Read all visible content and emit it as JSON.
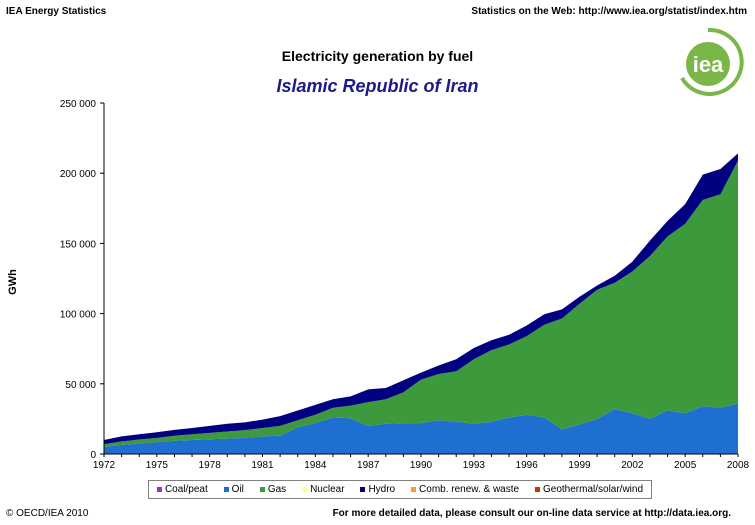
{
  "header": {
    "left": "IEA Energy Statistics",
    "right": "Statistics on the Web: http://www.iea.org/statist/index.htm"
  },
  "logo": {
    "text": "iea"
  },
  "footer": {
    "left": "© OECD/IEA 2010",
    "right": "For more detailed data, please consult our on-line data service at http://data.iea.org."
  },
  "colors": {
    "coal": "#9933cc",
    "oil": "#1f6fd1",
    "gas": "#3c9a3c",
    "nuclear": "#ffff99",
    "hydro": "#000080",
    "renewables": "#ff9933",
    "geothermal": "#cc3300",
    "logo_green": "#7ab648"
  },
  "chart_data": {
    "type": "area",
    "stacked": true,
    "title": "Electricity generation by fuel",
    "subtitle": "Islamic Republic of Iran",
    "xlabel": "",
    "ylabel": "GWh",
    "ylim": [
      0,
      250000
    ],
    "yticks": [
      0,
      50000,
      100000,
      150000,
      200000,
      250000
    ],
    "ytick_labels": [
      "0",
      "50 000",
      "100 000",
      "150 000",
      "200 000",
      "250 000"
    ],
    "xlim": [
      1972,
      2008
    ],
    "xticks": [
      1972,
      1975,
      1978,
      1981,
      1984,
      1987,
      1990,
      1993,
      1996,
      1999,
      2002,
      2005,
      2008
    ],
    "x": [
      1972,
      1973,
      1974,
      1975,
      1976,
      1977,
      1978,
      1979,
      1980,
      1981,
      1982,
      1983,
      1984,
      1985,
      1986,
      1987,
      1988,
      1989,
      1990,
      1991,
      1992,
      1993,
      1994,
      1995,
      1996,
      1997,
      1998,
      1999,
      2000,
      2001,
      2002,
      2003,
      2004,
      2005,
      2006,
      2007,
      2008
    ],
    "series": [
      {
        "name": "Coal/peat",
        "color_key": "coal",
        "values": [
          0,
          0,
          0,
          0,
          0,
          0,
          0,
          0,
          0,
          0,
          0,
          0,
          0,
          0,
          0,
          0,
          0,
          0,
          0,
          0,
          0,
          0,
          0,
          0,
          0,
          0,
          0,
          0,
          0,
          0,
          0,
          0,
          0,
          0,
          0,
          0,
          0
        ]
      },
      {
        "name": "Oil",
        "color_key": "oil",
        "values": [
          5000,
          6500,
          7500,
          8500,
          9500,
          10000,
          10500,
          11000,
          11500,
          12500,
          13000,
          19000,
          22000,
          26000,
          25500,
          20000,
          21500,
          22000,
          22000,
          24000,
          23000,
          21500,
          23000,
          26000,
          28000,
          26000,
          17500,
          21000,
          25000,
          32000,
          29000,
          25000,
          31000,
          29000,
          34000,
          33000,
          36000
        ]
      },
      {
        "name": "Gas",
        "color_key": "gas",
        "values": [
          2000,
          2500,
          2800,
          3000,
          3500,
          4000,
          4500,
          5000,
          5500,
          6000,
          7000,
          5000,
          6000,
          7000,
          9000,
          17000,
          17500,
          22000,
          31000,
          33000,
          36000,
          46000,
          51000,
          52000,
          56000,
          66000,
          79000,
          86000,
          92000,
          90000,
          101000,
          116000,
          124000,
          135000,
          147000,
          152000,
          173000
        ]
      },
      {
        "name": "Nuclear",
        "color_key": "nuclear",
        "values": [
          0,
          0,
          0,
          0,
          0,
          0,
          0,
          0,
          0,
          0,
          0,
          0,
          0,
          0,
          0,
          0,
          0,
          0,
          0,
          0,
          0,
          0,
          0,
          0,
          0,
          0,
          0,
          0,
          0,
          0,
          0,
          0,
          0,
          0,
          0,
          0,
          0
        ]
      },
      {
        "name": "Hydro",
        "color_key": "hydro",
        "values": [
          3000,
          3500,
          3800,
          4000,
          4200,
          4500,
          5000,
          5500,
          5500,
          6000,
          7000,
          7000,
          7000,
          6000,
          6500,
          9000,
          8000,
          8500,
          5000,
          6000,
          8500,
          8000,
          7000,
          7000,
          7500,
          7500,
          6500,
          5000,
          3000,
          5000,
          7000,
          11000,
          11000,
          14000,
          18000,
          18000,
          5000
        ]
      },
      {
        "name": "Comb. renew. & waste",
        "color_key": "renewables",
        "values": [
          0,
          0,
          0,
          0,
          0,
          0,
          0,
          0,
          0,
          0,
          0,
          0,
          0,
          0,
          0,
          0,
          0,
          0,
          0,
          0,
          0,
          0,
          0,
          0,
          0,
          0,
          0,
          0,
          0,
          0,
          0,
          0,
          0,
          0,
          0,
          0,
          0
        ]
      },
      {
        "name": "Geothermal/solar/wind",
        "color_key": "geothermal",
        "values": [
          0,
          0,
          0,
          0,
          0,
          0,
          0,
          0,
          0,
          0,
          0,
          0,
          0,
          0,
          0,
          0,
          0,
          0,
          0,
          0,
          0,
          0,
          0,
          0,
          0,
          0,
          0,
          0,
          0,
          0,
          0,
          0,
          0,
          0,
          0,
          0,
          300
        ]
      }
    ],
    "legend_position": "bottom"
  }
}
